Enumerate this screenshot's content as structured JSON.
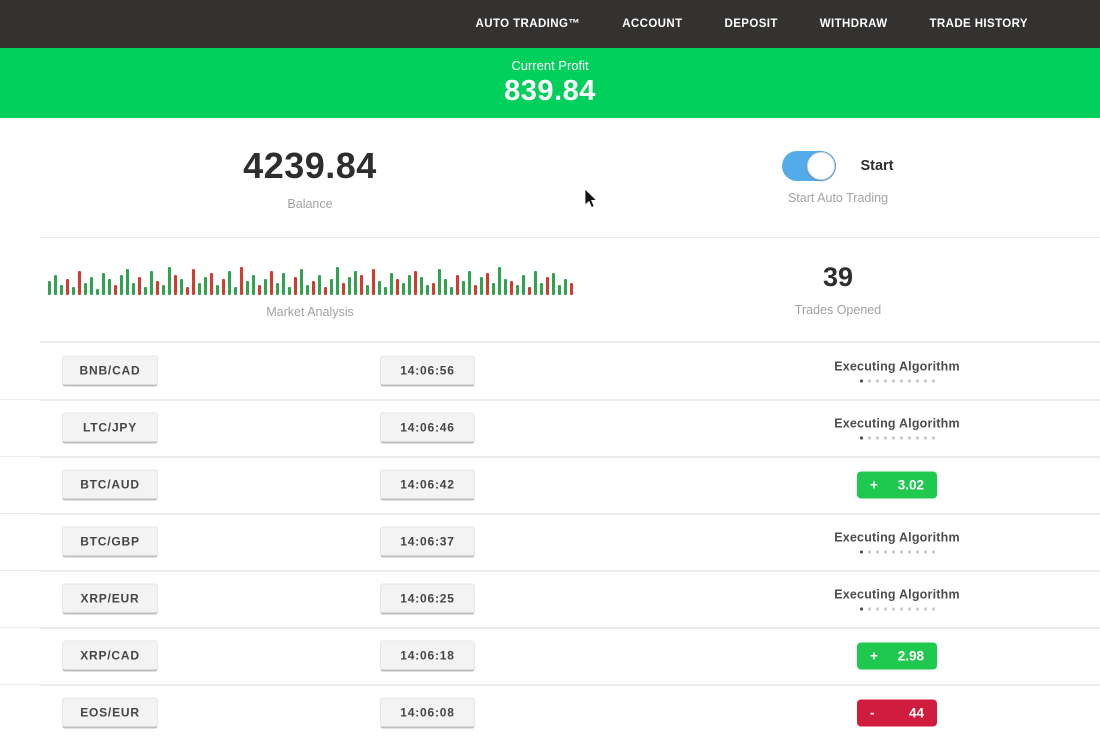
{
  "nav": {
    "items": [
      "AUTO TRADING™",
      "ACCOUNT",
      "DEPOSIT",
      "WITHDRAW",
      "TRADE HISTORY"
    ]
  },
  "profit_banner": {
    "label": "Current Profit",
    "value": "839.84"
  },
  "stats": {
    "balance": {
      "value": "4239.84",
      "label": "Balance"
    },
    "auto_trading": {
      "state": "on",
      "toggle_label": "Start",
      "label": "Start Auto Trading"
    },
    "market_analysis": {
      "label": "Market Analysis",
      "bars": [
        "g14",
        "g20",
        "g10",
        "r16",
        "g8",
        "r24",
        "g12",
        "g18",
        "g6",
        "g22",
        "g16",
        "r10",
        "g20",
        "g26",
        "g12",
        "r18",
        "g8",
        "g24",
        "r14",
        "g10",
        "g28",
        "r20",
        "g16",
        "r8",
        "r26",
        "g12",
        "g18",
        "r22",
        "g10",
        "r16",
        "g24",
        "g8",
        "r28",
        "g14",
        "g20",
        "r10",
        "g16",
        "r24",
        "g12",
        "g22",
        "g8",
        "r18",
        "g26",
        "g10",
        "r14",
        "g20",
        "r8",
        "g16",
        "g28",
        "r12",
        "g18",
        "g24",
        "r20",
        "g10",
        "r26",
        "g14",
        "g8",
        "g22",
        "r16",
        "g12",
        "g20",
        "r24",
        "g18",
        "g10",
        "r12",
        "g26",
        "g16",
        "g8",
        "r20",
        "g14",
        "g24",
        "r10",
        "g18",
        "r22",
        "g12",
        "g28",
        "g16",
        "r14",
        "g10",
        "g20",
        "r8",
        "g24",
        "g12",
        "r18",
        "g22",
        "g10",
        "g16",
        "r12"
      ]
    },
    "trades_opened": {
      "value": "39",
      "label": "Trades Opened"
    }
  },
  "trades": {
    "progress_dots": {
      "count": 10,
      "active": 1
    },
    "executing_label": "Executing Algorithm",
    "rows": [
      {
        "pair": "BNB/CAD",
        "time": "14:06:56",
        "status": "executing"
      },
      {
        "pair": "LTC/JPY",
        "time": "14:06:46",
        "status": "executing"
      },
      {
        "pair": "BTC/AUD",
        "time": "14:06:42",
        "status": "profit",
        "sign": "+",
        "amount": "3.02"
      },
      {
        "pair": "BTC/GBP",
        "time": "14:06:37",
        "status": "executing"
      },
      {
        "pair": "XRP/EUR",
        "time": "14:06:25",
        "status": "executing"
      },
      {
        "pair": "XRP/CAD",
        "time": "14:06:18",
        "status": "profit",
        "sign": "+",
        "amount": "2.98"
      },
      {
        "pair": "EOS/EUR",
        "time": "14:06:08",
        "status": "loss",
        "sign": "-",
        "amount": "44"
      }
    ]
  },
  "colors": {
    "nav_bg": "#333231",
    "banner_green": "#01d05c",
    "badge_green": "#1fc84f",
    "badge_red": "#d01d3f",
    "toggle_blue": "#54abe9",
    "bar_green": "#2ea44f",
    "bar_red": "#d63a2f"
  }
}
